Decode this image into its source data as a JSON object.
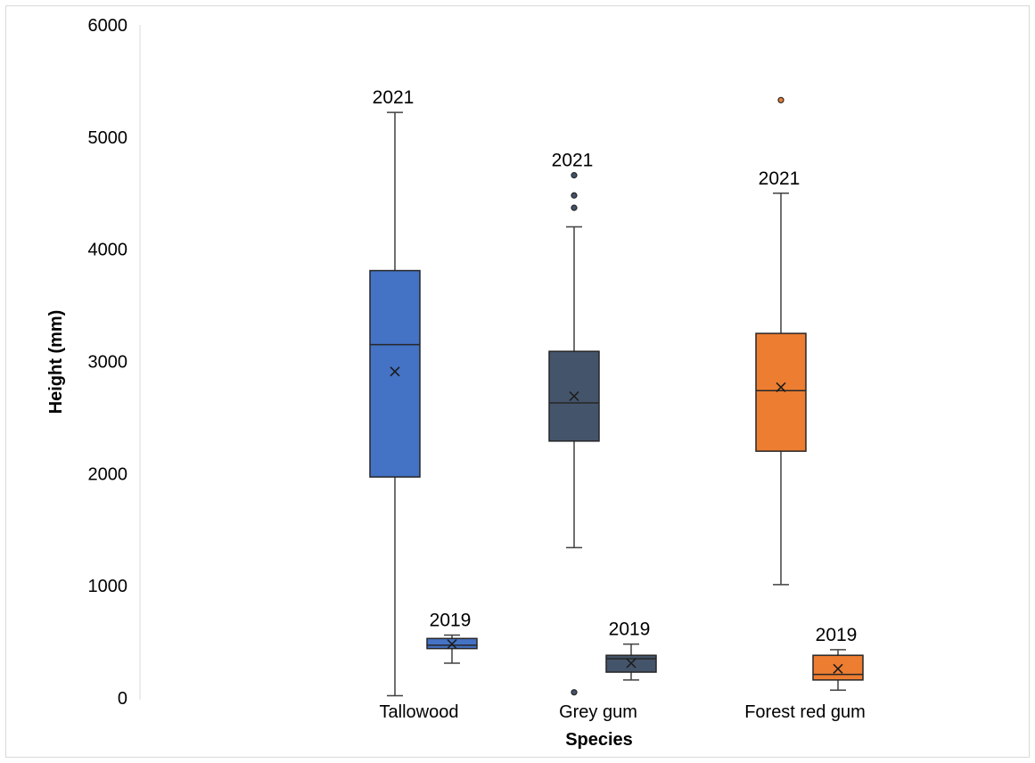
{
  "chart_data": {
    "type": "box",
    "xlabel": "Species",
    "ylabel": "Height (mm)",
    "ylim": [
      0,
      6000
    ],
    "yticks": [
      0,
      1000,
      2000,
      3000,
      4000,
      5000,
      6000
    ],
    "ytick_labels": [
      "0",
      "1000",
      "2000",
      "3000",
      "4000",
      "5000",
      "6000"
    ],
    "grid": false,
    "legend": "none",
    "categories": [
      "Tallowood",
      "Grey gum",
      "Forest red gum"
    ],
    "groups": [
      {
        "species": "Tallowood",
        "color": "#4472C4",
        "boxes": [
          {
            "label": "2021",
            "min": 20,
            "q1": 1970,
            "median": 3150,
            "q3": 3810,
            "max": 5220,
            "mean": 2910,
            "outliers": []
          },
          {
            "label": "2019",
            "min": 310,
            "q1": 440,
            "median": 470,
            "q3": 530,
            "max": 560,
            "mean": 480,
            "outliers": []
          }
        ]
      },
      {
        "species": "Grey gum",
        "color": "#44546A",
        "boxes": [
          {
            "label": "2021",
            "min": 1340,
            "q1": 2290,
            "median": 2630,
            "q3": 3090,
            "max": 4200,
            "mean": 2690,
            "outliers": [
              4370,
              4480,
              4660,
              50
            ]
          },
          {
            "label": "2019",
            "min": 160,
            "q1": 230,
            "median": 350,
            "q3": 380,
            "max": 480,
            "mean": 310,
            "outliers": []
          }
        ]
      },
      {
        "species": "Forest red gum",
        "color": "#ED7D31",
        "boxes": [
          {
            "label": "2021",
            "min": 1010,
            "q1": 2200,
            "median": 2740,
            "q3": 3250,
            "max": 4500,
            "mean": 2770,
            "outliers": [
              5330
            ]
          },
          {
            "label": "2019",
            "min": 70,
            "q1": 160,
            "median": 210,
            "q3": 380,
            "max": 430,
            "mean": 260,
            "outliers": []
          }
        ]
      }
    ]
  }
}
